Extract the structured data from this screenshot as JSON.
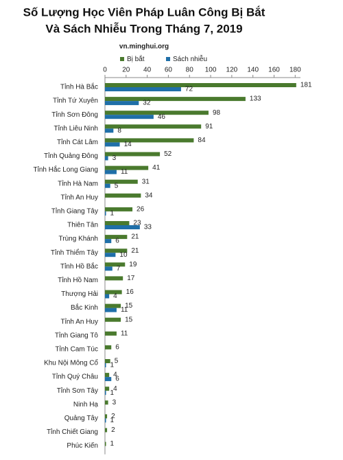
{
  "chart_data": {
    "type": "hbar",
    "title": [
      "Số Lượng Học Viên Pháp Luân Công Bị Bắt",
      "Và Sách Nhiễu Trong Tháng 7, 2019"
    ],
    "subtitle": "vn.minghui.org",
    "categories": [
      "Tỉnh Hà Bắc",
      "Tỉnh Tứ Xuyên",
      "Tỉnh Sơn Đông",
      "Tỉnh Liêu Ninh",
      "Tỉnh Cát Lâm",
      "Tỉnh Quảng Đông",
      "Tỉnh Hắc Long Giang",
      "Tỉnh Hà Nam",
      "Tỉnh An Huy",
      "Tỉnh Giang Tây",
      "Thiên Tân",
      "Trùng Khánh",
      "Tỉnh Thiểm Tây",
      "Tỉnh Hồ Bắc",
      "Tỉnh Hồ Nam",
      "Thượng Hải",
      "Bắc Kinh",
      "Tỉnh An Huy",
      "Tỉnh Giang Tô",
      "Tỉnh Cam Túc",
      "Khu Nội Mông Cổ",
      "Tỉnh Quý Châu",
      "Tỉnh Sơn Tây",
      "Ninh Hạ",
      "Quảng Tây",
      "Tỉnh Chiết Giang",
      "Phúc Kiến"
    ],
    "series": [
      {
        "name": "Bị bắt",
        "color": "#4a7a2e",
        "values": [
          181,
          133,
          98,
          91,
          84,
          52,
          41,
          31,
          34,
          26,
          23,
          21,
          21,
          19,
          17,
          16,
          15,
          15,
          11,
          6,
          5,
          4,
          4,
          3,
          2,
          2,
          1
        ]
      },
      {
        "name": "Sách nhiễu",
        "color": "#1f6fa8",
        "values": [
          72,
          32,
          46,
          8,
          14,
          3,
          11,
          5,
          null,
          1,
          33,
          6,
          10,
          7,
          null,
          4,
          11,
          null,
          null,
          null,
          1,
          6,
          1,
          null,
          1,
          null,
          null
        ]
      }
    ],
    "xlim": [
      0,
      185
    ],
    "xticks": [
      0,
      20,
      40,
      60,
      80,
      100,
      120,
      140,
      160,
      180
    ]
  }
}
